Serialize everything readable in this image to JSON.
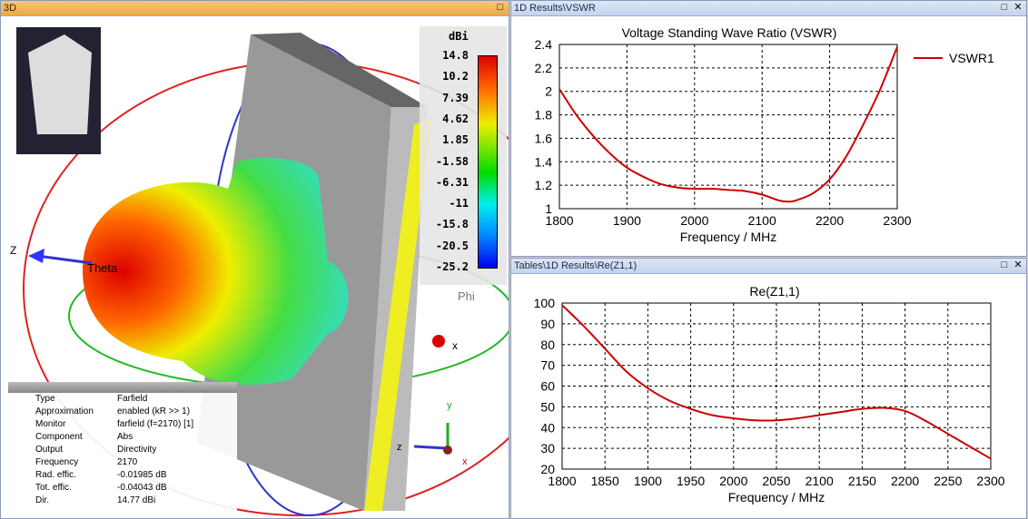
{
  "panel3d": {
    "title": "3D",
    "axis_labels": {
      "z": "Z",
      "theta": "Theta",
      "phi": "Phi",
      "x": "x",
      "y": "y",
      "z2": "z",
      "x2": "x"
    },
    "colorbar": {
      "unit": "dBi",
      "ticks": [
        "14.8",
        "10.2",
        "7.39",
        "4.62",
        "1.85",
        "-1.58",
        "-6.31",
        "-11",
        "-15.8",
        "-20.5",
        "-25.2"
      ]
    },
    "info": [
      [
        "Type",
        "Farfield"
      ],
      [
        "Approximation",
        "enabled (kR >> 1)"
      ],
      [
        "Monitor",
        "farfield (f=2170) [1]"
      ],
      [
        "Component",
        "Abs"
      ],
      [
        "Output",
        "Directivity"
      ],
      [
        "Frequency",
        "2170"
      ],
      [
        "Rad. effic.",
        "-0.01985 dB"
      ],
      [
        "Tot. effic.",
        "-0.04043 dB"
      ],
      [
        "Dir.",
        "14.77 dBi"
      ]
    ]
  },
  "panel_vswr": {
    "title": "1D Results\\VSWR"
  },
  "panel_rez": {
    "title": "Tables\\1D Results\\Re(Z1,1)"
  },
  "chart_data": [
    {
      "type": "line",
      "title": "Voltage Standing Wave Ratio (VSWR)",
      "xlabel": "Frequency / MHz",
      "ylabel": "",
      "xlim": [
        1800,
        2300
      ],
      "ylim": [
        1,
        2.4
      ],
      "xticks": [
        "1800",
        "1900",
        "2000",
        "2100",
        "2200",
        "2300"
      ],
      "yticks": [
        "1",
        "1.2",
        "1.4",
        "1.6",
        "1.8",
        "2",
        "2.2",
        "2.4"
      ],
      "grid": true,
      "legend": "top-right",
      "color": "#cc0000",
      "series": [
        {
          "name": "VSWR1",
          "x": [
            1800,
            1825,
            1850,
            1875,
            1900,
            1925,
            1950,
            1975,
            2000,
            2025,
            2050,
            2075,
            2100,
            2125,
            2140,
            2150,
            2175,
            2200,
            2225,
            2250,
            2275,
            2300
          ],
          "y": [
            2.02,
            1.8,
            1.62,
            1.47,
            1.35,
            1.27,
            1.21,
            1.18,
            1.17,
            1.17,
            1.16,
            1.15,
            1.12,
            1.07,
            1.06,
            1.07,
            1.13,
            1.25,
            1.45,
            1.72,
            2.02,
            2.38
          ]
        }
      ]
    },
    {
      "type": "line",
      "title": "Re(Z1,1)",
      "xlabel": "Frequency / MHz",
      "ylabel": "",
      "xlim": [
        1800,
        2300
      ],
      "ylim": [
        20,
        100
      ],
      "xticks": [
        "1800",
        "1850",
        "1900",
        "1950",
        "2000",
        "2050",
        "2100",
        "2150",
        "2200",
        "2250",
        "2300"
      ],
      "yticks": [
        "20",
        "30",
        "40",
        "50",
        "60",
        "70",
        "80",
        "90",
        "100"
      ],
      "grid": true,
      "color": "#cc0000",
      "series": [
        {
          "name": "Re(Z1,1)",
          "x": [
            1800,
            1825,
            1850,
            1875,
            1900,
            1925,
            1950,
            1975,
            2000,
            2025,
            2050,
            2075,
            2100,
            2125,
            2150,
            2175,
            2200,
            2225,
            2250,
            2275,
            2300
          ],
          "y": [
            99,
            89,
            78,
            67,
            59,
            53,
            49,
            46,
            44.5,
            43.5,
            43.5,
            44.5,
            46,
            47.5,
            49,
            49.5,
            48,
            43,
            37,
            31,
            25
          ]
        }
      ]
    }
  ]
}
